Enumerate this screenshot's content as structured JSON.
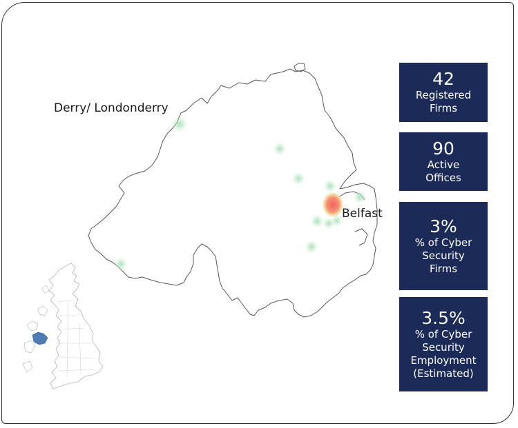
{
  "map": {
    "cities": [
      {
        "name": "Derry/ Londonderry"
      },
      {
        "name": "Belfast"
      }
    ],
    "heatmap_colors": {
      "low": "#bfe6c9",
      "high": "#f26b6b",
      "mid": "#f5d28a"
    },
    "inset_highlight_color": "#4f7bb3"
  },
  "stats": [
    {
      "value": "42",
      "label_lines": [
        "Registered",
        "Firms"
      ]
    },
    {
      "value": "90",
      "label_lines": [
        "Active",
        "Offices"
      ]
    },
    {
      "value": "3%",
      "label_lines": [
        "% of Cyber",
        "Security",
        "Firms"
      ]
    },
    {
      "value": "3.5%",
      "label_lines": [
        "% of Cyber",
        "Security",
        "Employment",
        "(Estimated)"
      ]
    }
  ]
}
